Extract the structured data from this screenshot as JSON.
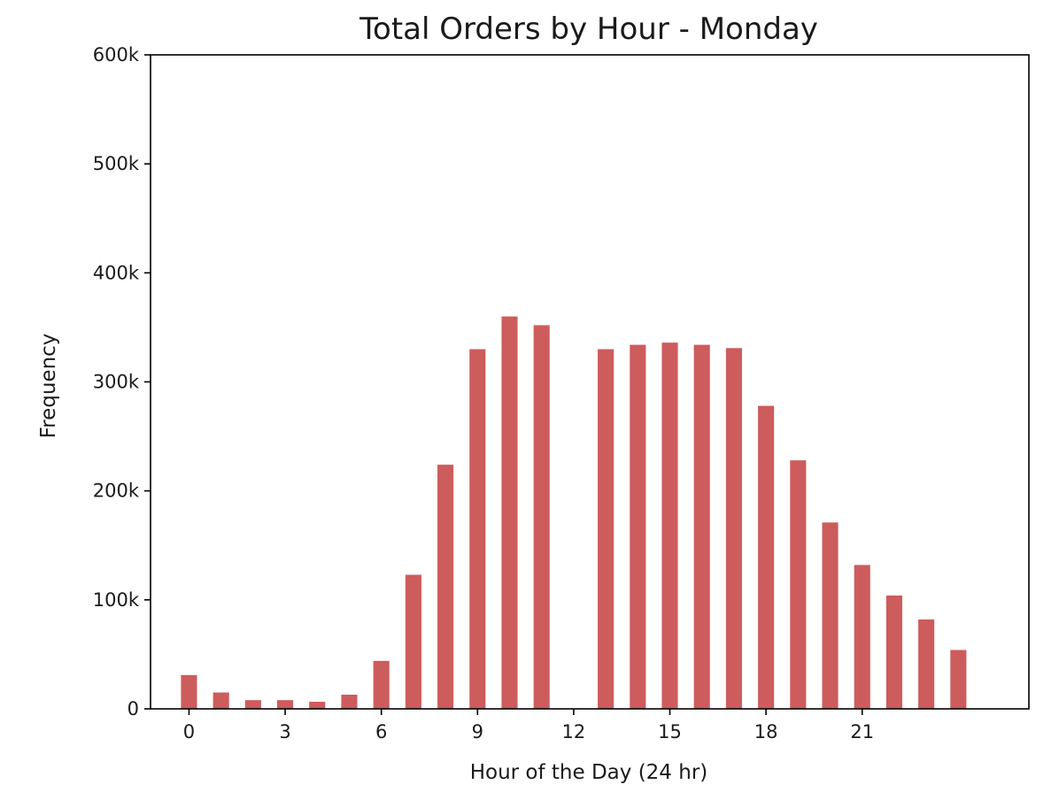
{
  "chart_data": {
    "type": "bar",
    "title": "Total Orders by Hour - Monday",
    "xlabel": "Hour of the Day (24 hr)",
    "ylabel": "Frequency",
    "x": [
      0,
      1,
      2,
      3,
      4,
      5,
      6,
      7,
      8,
      9,
      10,
      11,
      13,
      14,
      15,
      16,
      17,
      18,
      19,
      20,
      21,
      22,
      23,
      24
    ],
    "values": [
      31000,
      15000,
      8000,
      8000,
      6500,
      13000,
      44000,
      123000,
      224000,
      330000,
      360000,
      352000,
      330000,
      334000,
      336000,
      334000,
      331000,
      278000,
      228000,
      171000,
      132000,
      104000,
      82000,
      54000
    ],
    "xlim": [
      -1.2,
      26.2
    ],
    "ylim": [
      0,
      600000
    ],
    "x_ticks": [
      0,
      3,
      6,
      9,
      12,
      15,
      18,
      21
    ],
    "x_tick_labels": [
      "0",
      "3",
      "6",
      "9",
      "12",
      "15",
      "18",
      "21"
    ],
    "y_ticks": [
      0,
      100000,
      200000,
      300000,
      400000,
      500000,
      600000
    ],
    "y_tick_labels": [
      "0",
      "100k",
      "200k",
      "300k",
      "400k",
      "500k",
      "600k"
    ],
    "bar_color": "#cd5c5c",
    "grid": false,
    "legend": "none"
  }
}
